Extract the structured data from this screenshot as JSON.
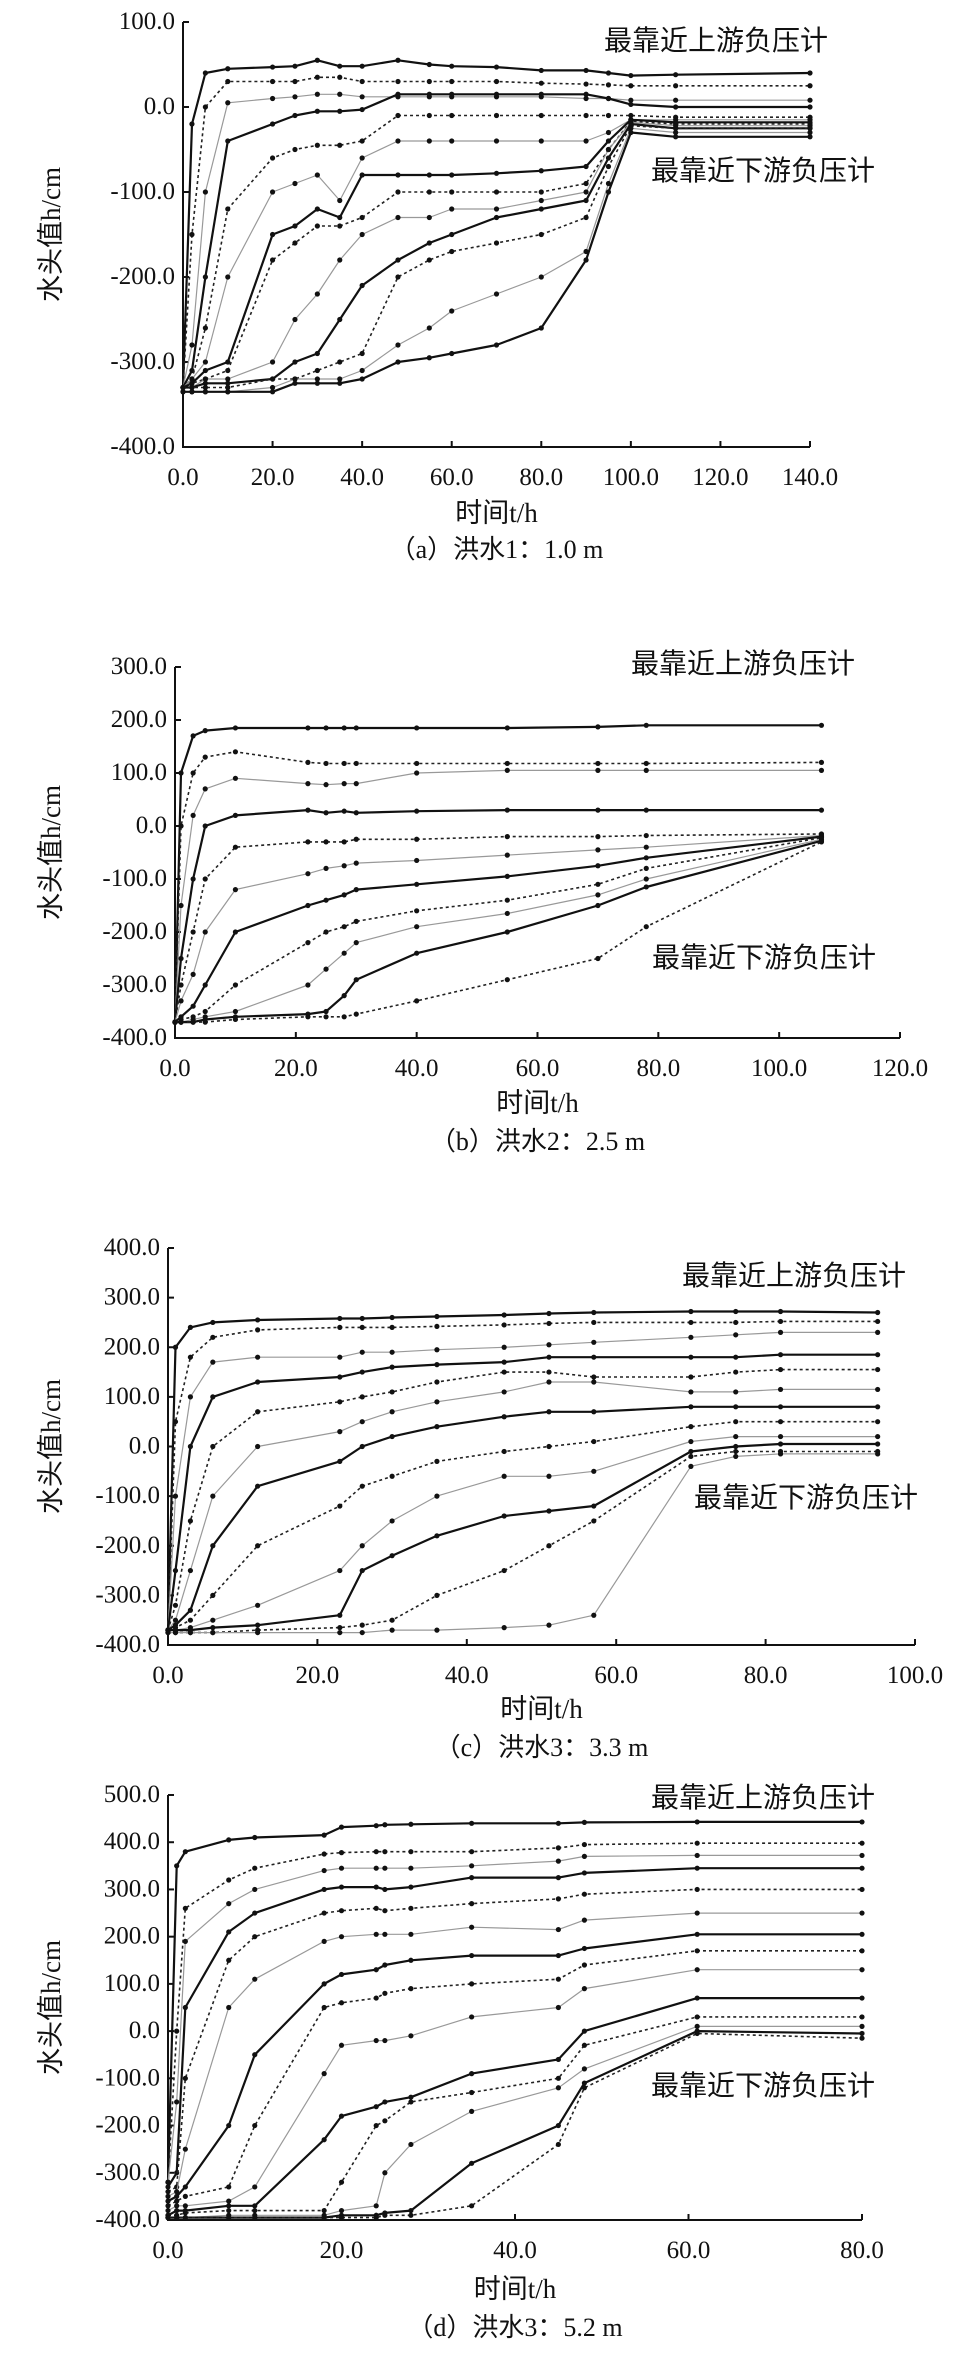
{
  "chart_data": [
    {
      "type": "line",
      "caption": "（a）洪水1：1.0 m",
      "xlabel": "时间t/h",
      "ylabel": "水头值h/cm",
      "xlim": [
        0,
        140
      ],
      "ylim": [
        -400,
        100
      ],
      "xticks": [
        "0.0",
        "20.0",
        "40.0",
        "60.0",
        "80.0",
        "100.0",
        "120.0",
        "140.0"
      ],
      "xtick_values": [
        0,
        20,
        40,
        60,
        80,
        100,
        120,
        140
      ],
      "yticks": [
        "100.0",
        "0.0",
        "-100.0",
        "-200.0",
        "-300.0",
        "-400.0"
      ],
      "ytick_values": [
        100,
        0,
        -100,
        -200,
        -300,
        -400
      ],
      "annotations": {
        "upstream": "最靠近上游负压计",
        "downstream": "最靠近下游负压计"
      },
      "x": [
        0,
        2,
        5,
        10,
        20,
        25,
        30,
        35,
        40,
        48,
        55,
        60,
        70,
        80,
        90,
        95,
        100,
        110,
        140
      ],
      "series": [
        [
          -330,
          -20,
          40,
          45,
          47,
          48,
          55,
          48,
          48,
          55,
          50,
          48,
          47,
          43,
          43,
          40,
          37,
          38,
          40
        ],
        [
          -330,
          -150,
          0,
          30,
          30,
          30,
          35,
          35,
          30,
          30,
          30,
          30,
          30,
          28,
          27,
          26,
          25,
          25,
          25
        ],
        [
          -330,
          -280,
          -100,
          5,
          10,
          12,
          15,
          15,
          12,
          12,
          12,
          12,
          12,
          12,
          10,
          10,
          8,
          8,
          8
        ],
        [
          -330,
          -310,
          -200,
          -40,
          -20,
          -10,
          -5,
          -5,
          -3,
          15,
          15,
          15,
          15,
          15,
          15,
          10,
          3,
          0,
          0
        ],
        [
          -330,
          -320,
          -260,
          -120,
          -60,
          -50,
          -45,
          -45,
          -40,
          -10,
          -10,
          -10,
          -10,
          -10,
          -10,
          -10,
          -10,
          -12,
          -12
        ],
        [
          -330,
          -320,
          -300,
          -200,
          -100,
          -90,
          -80,
          -110,
          -60,
          -40,
          -40,
          -40,
          -40,
          -40,
          -40,
          -30,
          -15,
          -15,
          -15
        ],
        [
          -330,
          -325,
          -310,
          -300,
          -150,
          -140,
          -120,
          -130,
          -80,
          -80,
          -80,
          -80,
          -78,
          -75,
          -70,
          -40,
          -15,
          -18,
          -18
        ],
        [
          -330,
          -325,
          -320,
          -310,
          -180,
          -160,
          -140,
          -140,
          -130,
          -100,
          -100,
          -100,
          -100,
          -100,
          -90,
          -50,
          -17,
          -20,
          -20
        ],
        [
          -330,
          -330,
          -320,
          -320,
          -300,
          -250,
          -220,
          -180,
          -150,
          -130,
          -130,
          -120,
          -120,
          -110,
          -100,
          -50,
          -18,
          -22,
          -22
        ],
        [
          -330,
          -330,
          -325,
          -325,
          -320,
          -300,
          -290,
          -250,
          -210,
          -180,
          -160,
          -150,
          -130,
          -120,
          -110,
          -60,
          -20,
          -25,
          -25
        ],
        [
          -330,
          -330,
          -330,
          -330,
          -320,
          -320,
          -310,
          -300,
          -290,
          -200,
          -180,
          -170,
          -160,
          -150,
          -130,
          -70,
          -22,
          -25,
          -25
        ],
        [
          -335,
          -335,
          -335,
          -335,
          -330,
          -320,
          -320,
          -320,
          -310,
          -280,
          -260,
          -240,
          -220,
          -200,
          -170,
          -90,
          -25,
          -30,
          -30
        ],
        [
          -335,
          -335,
          -335,
          -335,
          -335,
          -325,
          -325,
          -325,
          -320,
          -300,
          -295,
          -290,
          -280,
          -260,
          -180,
          -100,
          -30,
          -35,
          -35
        ]
      ]
    },
    {
      "type": "line",
      "caption": "（b）洪水2：2.5 m",
      "xlabel": "时间t/h",
      "ylabel": "水头值h/cm",
      "xlim": [
        0,
        120
      ],
      "ylim": [
        -400,
        300
      ],
      "xticks": [
        "0.0",
        "20.0",
        "40.0",
        "60.0",
        "80.0",
        "100.0",
        "120.0"
      ],
      "xtick_values": [
        0,
        20,
        40,
        60,
        80,
        100,
        120
      ],
      "yticks": [
        "300.0",
        "200.0",
        "100.0",
        "0.0",
        "-100.0",
        "-200.0",
        "-300.0",
        "-400.0"
      ],
      "ytick_values": [
        300,
        200,
        100,
        0,
        -100,
        -200,
        -300,
        -400
      ],
      "annotations": {
        "upstream": "最靠近上游负压计",
        "downstream": "最靠近下游负压计"
      },
      "x": [
        0,
        1,
        3,
        5,
        10,
        22,
        25,
        28,
        30,
        40,
        55,
        70,
        78,
        107
      ],
      "series": [
        [
          -370,
          100,
          170,
          180,
          185,
          185,
          185,
          185,
          185,
          185,
          185,
          187,
          190,
          190
        ],
        [
          -370,
          0,
          100,
          130,
          140,
          120,
          118,
          118,
          118,
          118,
          118,
          118,
          118,
          120
        ],
        [
          -370,
          -150,
          20,
          70,
          90,
          80,
          78,
          80,
          80,
          100,
          105,
          105,
          105,
          105
        ],
        [
          -370,
          -250,
          -100,
          0,
          20,
          30,
          25,
          28,
          25,
          28,
          30,
          30,
          30,
          30
        ],
        [
          -370,
          -300,
          -200,
          -100,
          -40,
          -30,
          -30,
          -30,
          -25,
          -25,
          -20,
          -20,
          -18,
          -15
        ],
        [
          -370,
          -330,
          -280,
          -200,
          -120,
          -90,
          -80,
          -75,
          -70,
          -65,
          -55,
          -45,
          -40,
          -18
        ],
        [
          -370,
          -360,
          -340,
          -300,
          -200,
          -150,
          -140,
          -130,
          -120,
          -110,
          -95,
          -75,
          -60,
          -20
        ],
        [
          -370,
          -365,
          -360,
          -350,
          -300,
          -220,
          -200,
          -190,
          -180,
          -160,
          -140,
          -110,
          -80,
          -22
        ],
        [
          -370,
          -370,
          -365,
          -360,
          -350,
          -300,
          -270,
          -240,
          -220,
          -190,
          -165,
          -130,
          -100,
          -25
        ],
        [
          -370,
          -370,
          -370,
          -365,
          -360,
          -355,
          -350,
          -320,
          -290,
          -240,
          -200,
          -150,
          -115,
          -28
        ],
        [
          -370,
          -370,
          -370,
          -370,
          -365,
          -360,
          -360,
          -360,
          -355,
          -330,
          -290,
          -250,
          -190,
          -30
        ]
      ]
    },
    {
      "type": "line",
      "caption": "（c）洪水3：3.3 m",
      "xlabel": "时间t/h",
      "ylabel": "水头值h/cm",
      "xlim": [
        0,
        100
      ],
      "ylim": [
        -400,
        400
      ],
      "xticks": [
        "0.0",
        "20.0",
        "40.0",
        "60.0",
        "80.0",
        "100.0"
      ],
      "xtick_values": [
        0,
        20,
        40,
        60,
        80,
        100
      ],
      "yticks": [
        "400.0",
        "300.0",
        "200.0",
        "100.0",
        "0.0",
        "-100.0",
        "-200.0",
        "-300.0",
        "-400.0"
      ],
      "ytick_values": [
        400,
        300,
        200,
        100,
        0,
        -100,
        -200,
        -300,
        -400
      ],
      "annotations": {
        "upstream": "最靠近上游负压计",
        "downstream": "最靠近下游负压计"
      },
      "x": [
        0,
        1,
        3,
        6,
        12,
        23,
        26,
        30,
        36,
        45,
        51,
        57,
        70,
        76,
        82,
        95
      ],
      "series": [
        [
          -370,
          200,
          240,
          250,
          255,
          258,
          258,
          260,
          262,
          265,
          268,
          270,
          272,
          272,
          272,
          270
        ],
        [
          -370,
          50,
          180,
          220,
          235,
          240,
          240,
          240,
          242,
          245,
          248,
          250,
          250,
          250,
          252,
          252
        ],
        [
          -370,
          -100,
          100,
          170,
          180,
          180,
          190,
          190,
          195,
          200,
          205,
          210,
          220,
          225,
          230,
          230
        ],
        [
          -370,
          -250,
          0,
          100,
          130,
          140,
          150,
          160,
          165,
          170,
          180,
          180,
          180,
          180,
          185,
          185
        ],
        [
          -370,
          -320,
          -150,
          0,
          70,
          90,
          100,
          110,
          130,
          150,
          150,
          140,
          140,
          150,
          155,
          155
        ],
        [
          -370,
          -350,
          -250,
          -100,
          0,
          30,
          50,
          70,
          90,
          110,
          130,
          130,
          110,
          110,
          115,
          115
        ],
        [
          -370,
          -360,
          -330,
          -200,
          -80,
          -30,
          0,
          20,
          40,
          60,
          70,
          70,
          80,
          80,
          80,
          80
        ],
        [
          -370,
          -365,
          -350,
          -300,
          -200,
          -120,
          -80,
          -60,
          -30,
          -10,
          0,
          10,
          40,
          50,
          50,
          50
        ],
        [
          -370,
          -370,
          -365,
          -350,
          -320,
          -250,
          -200,
          -150,
          -100,
          -60,
          -60,
          -50,
          10,
          20,
          20,
          20
        ],
        [
          -370,
          -370,
          -370,
          -365,
          -360,
          -340,
          -250,
          -220,
          -180,
          -140,
          -130,
          -120,
          -10,
          0,
          5,
          5
        ],
        [
          -375,
          -375,
          -375,
          -375,
          -370,
          -365,
          -360,
          -350,
          -300,
          -250,
          -200,
          -150,
          -20,
          -10,
          -10,
          -10
        ],
        [
          -375,
          -375,
          -375,
          -375,
          -375,
          -375,
          -375,
          -370,
          -370,
          -365,
          -360,
          -340,
          -40,
          -20,
          -15,
          -15
        ]
      ]
    },
    {
      "type": "line",
      "caption": "（d）洪水3：5.2 m",
      "xlabel": "时间t/h",
      "ylabel": "水头值h/cm",
      "xlim": [
        0,
        80
      ],
      "ylim": [
        -400,
        500
      ],
      "xticks": [
        "0.0",
        "20.0",
        "40.0",
        "60.0",
        "80.0"
      ],
      "xtick_values": [
        0,
        20,
        40,
        60,
        80
      ],
      "yticks": [
        "500.0",
        "400.0",
        "300.0",
        "200.0",
        "100.0",
        "0.0",
        "-100.0",
        "-200.0",
        "-300.0",
        "-400.0"
      ],
      "ytick_values": [
        500,
        400,
        300,
        200,
        100,
        0,
        -100,
        -200,
        -300,
        -400
      ],
      "annotations": {
        "upstream": "最靠近上游负压计",
        "downstream": "最靠近下游负压计"
      },
      "x": [
        0,
        1,
        2,
        7,
        10,
        18,
        20,
        24,
        25,
        28,
        35,
        45,
        48,
        61,
        80
      ],
      "series": [
        [
          -320,
          350,
          380,
          405,
          410,
          415,
          432,
          435,
          437,
          438,
          440,
          440,
          442,
          443,
          443
        ],
        [
          -320,
          0,
          260,
          320,
          345,
          375,
          378,
          380,
          380,
          380,
          380,
          388,
          395,
          398,
          398
        ],
        [
          -320,
          -150,
          190,
          270,
          300,
          340,
          345,
          345,
          345,
          345,
          350,
          360,
          370,
          372,
          372
        ],
        [
          -330,
          -300,
          50,
          210,
          250,
          300,
          305,
          305,
          300,
          305,
          325,
          325,
          335,
          345,
          345
        ],
        [
          -340,
          -330,
          -100,
          150,
          200,
          250,
          255,
          260,
          255,
          260,
          270,
          280,
          290,
          300,
          300
        ],
        [
          -350,
          -340,
          -250,
          50,
          110,
          190,
          200,
          205,
          205,
          205,
          220,
          215,
          235,
          250,
          250
        ],
        [
          -360,
          -350,
          -330,
          -200,
          -50,
          100,
          120,
          130,
          140,
          150,
          160,
          160,
          175,
          205,
          205
        ],
        [
          -370,
          -360,
          -350,
          -330,
          -200,
          50,
          60,
          70,
          80,
          90,
          100,
          110,
          140,
          170,
          170
        ],
        [
          -380,
          -370,
          -370,
          -360,
          -330,
          -90,
          -30,
          -20,
          -20,
          -10,
          30,
          50,
          90,
          130,
          130
        ],
        [
          -390,
          -380,
          -380,
          -370,
          -370,
          -230,
          -180,
          -160,
          -150,
          -140,
          -90,
          -60,
          0,
          70,
          70
        ],
        [
          -390,
          -390,
          -385,
          -380,
          -380,
          -380,
          -320,
          -200,
          -190,
          -150,
          -130,
          -100,
          -30,
          30,
          30
        ],
        [
          -395,
          -395,
          -395,
          -390,
          -390,
          -390,
          -380,
          -370,
          -300,
          -240,
          -170,
          -120,
          -80,
          10,
          10
        ],
        [
          -395,
          -395,
          -395,
          -395,
          -395,
          -395,
          -390,
          -390,
          -385,
          -380,
          -280,
          -200,
          -110,
          0,
          -5
        ],
        [
          -395,
          -395,
          -395,
          -395,
          -395,
          -395,
          -395,
          -395,
          -390,
          -390,
          -370,
          -240,
          -120,
          -5,
          -15
        ]
      ]
    }
  ]
}
